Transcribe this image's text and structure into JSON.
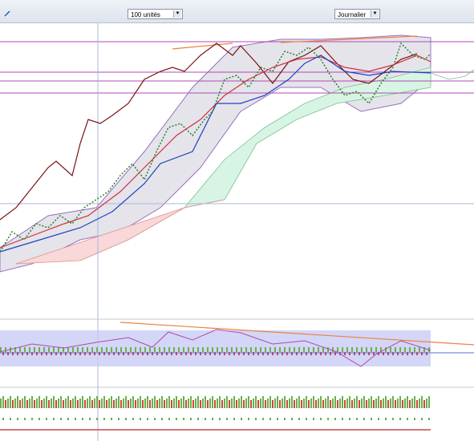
{
  "toolbar": {
    "quantity": "100 unités",
    "period": "Journalier"
  }
}
